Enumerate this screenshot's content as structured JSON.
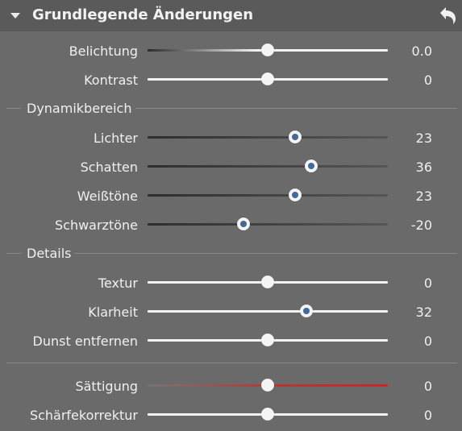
{
  "panel": {
    "title": "Grundlegende Änderungen",
    "reset_icon": "undo-arrow-icon",
    "collapse_icon": "triangle-down-icon"
  },
  "basic": [
    {
      "label": "Belichtung",
      "value": "0.0",
      "level": 0.5
    },
    {
      "label": "Kontrast",
      "value": "0",
      "level": 0.5
    }
  ],
  "sections": {
    "dynamic": "Dynamikbereich",
    "details": "Details"
  },
  "dynamic": [
    {
      "label": "Lichter",
      "value": "23",
      "level": 0.615
    },
    {
      "label": "Schatten",
      "value": "36",
      "level": 0.68
    },
    {
      "label": "Weißtöne",
      "value": "23",
      "level": 0.615
    },
    {
      "label": "Schwarztöne",
      "value": "-20",
      "level": 0.4
    }
  ],
  "details": [
    {
      "label": "Textur",
      "value": "0",
      "level": 0.5
    },
    {
      "label": "Klarheit",
      "value": "32",
      "level": 0.66
    },
    {
      "label": "Dunst entfernen",
      "value": "0",
      "level": 0.5
    }
  ],
  "color": [
    {
      "label": "Sättigung",
      "value": "0",
      "level": 0.5
    },
    {
      "label": "Schärfekorrektur",
      "value": "0",
      "level": 0.5
    }
  ],
  "colors": {
    "background": "#6a6a6a",
    "header": "#5a5a5a",
    "knob_accent": "#44689a",
    "saturation_red": "#c62828"
  }
}
